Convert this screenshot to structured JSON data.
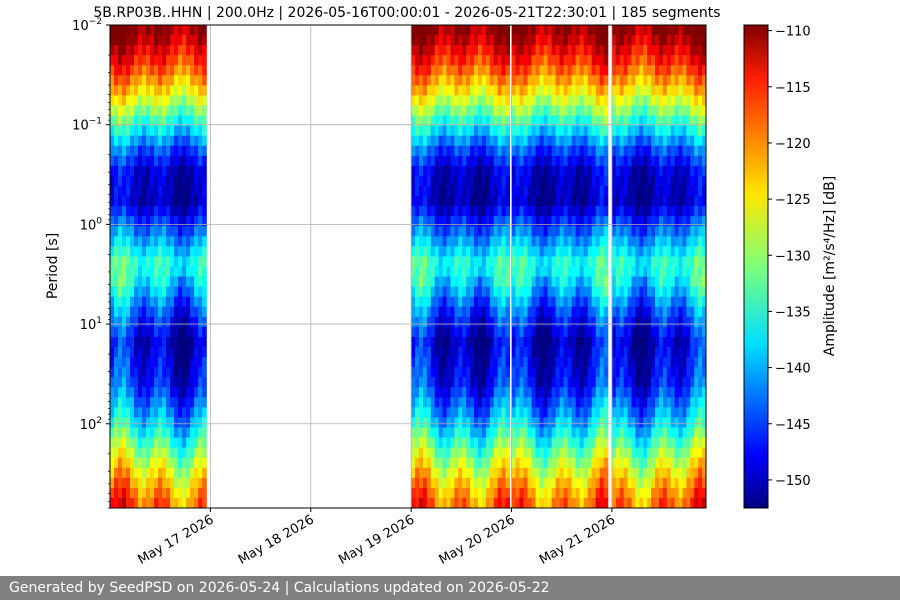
{
  "chart_data": {
    "type": "heatmap",
    "title": "5B.RP03B..HHN | 200.0Hz | 2026-05-16T00:00:01 - 2026-05-21T22:30:01 | 185 segments",
    "ylabel": "Period [s]",
    "y_scale": "log",
    "y_inverted": true,
    "ylim": [
      0.01,
      700
    ],
    "y_ticks": [
      {
        "exp": "-2",
        "value": 0.01
      },
      {
        "exp": "-1",
        "value": 0.1
      },
      {
        "exp": "0",
        "value": 1
      },
      {
        "exp": "1",
        "value": 10
      },
      {
        "exp": "2",
        "value": 100
      }
    ],
    "xlim": [
      "2026-05-16T00:00:01",
      "2026-05-21T22:30:01"
    ],
    "x_ticks": [
      "May 17 2026",
      "May 18 2026",
      "May 19 2026",
      "May 20 2026",
      "May 21 2026"
    ],
    "grid": true,
    "data_coverage": [
      {
        "start": "2026-05-16T00:00:01",
        "end": "2026-05-16T23:00:00"
      },
      {
        "start": "2026-05-19T00:00:00",
        "end": "2026-05-19T23:30:00"
      },
      {
        "start": "2026-05-20T00:00:00",
        "end": "2026-05-20T23:00:00"
      },
      {
        "start": "2026-05-21T00:00:00",
        "end": "2026-05-21T22:30:01"
      }
    ],
    "colorbar": {
      "label": "Amplitude [m²/s⁴/Hz] [dB]",
      "min": -152.5,
      "max": -109.5,
      "ticks": [
        "−110",
        "−115",
        "−120",
        "−125",
        "−130",
        "−135",
        "−140",
        "−145",
        "−150"
      ],
      "colormap": "jet"
    },
    "median_profile": [
      {
        "period": 0.012,
        "db": -110
      },
      {
        "period": 0.016,
        "db": -113
      },
      {
        "period": 0.025,
        "db": -117
      },
      {
        "period": 0.045,
        "db": -124
      },
      {
        "period": 0.07,
        "db": -130
      },
      {
        "period": 0.1,
        "db": -135
      },
      {
        "period": 0.17,
        "db": -143
      },
      {
        "period": 0.3,
        "db": -149
      },
      {
        "period": 0.6,
        "db": -150
      },
      {
        "period": 1.2,
        "db": -142
      },
      {
        "period": 2.5,
        "db": -134
      },
      {
        "period": 4,
        "db": -137
      },
      {
        "period": 7,
        "db": -143
      },
      {
        "period": 15,
        "db": -149
      },
      {
        "period": 40,
        "db": -146
      },
      {
        "period": 90,
        "db": -139
      },
      {
        "period": 200,
        "db": -130
      },
      {
        "period": 350,
        "db": -124
      },
      {
        "period": 600,
        "db": -119
      }
    ]
  },
  "footer": {
    "text": "Generated by SeedPSD on 2026-05-24 | Calculations updated on 2026-05-22"
  }
}
